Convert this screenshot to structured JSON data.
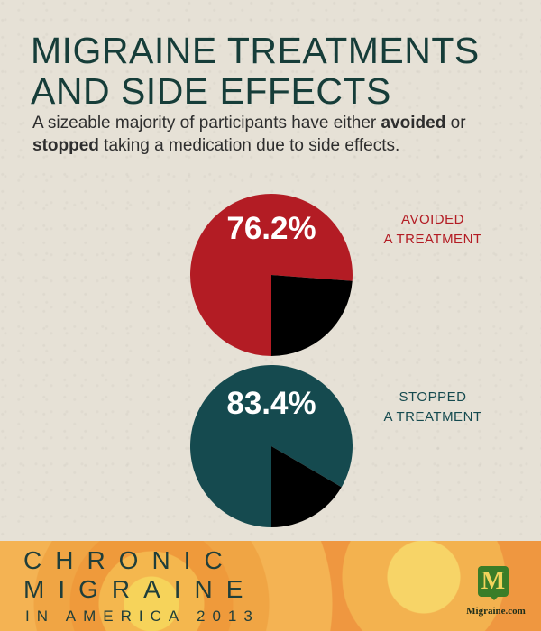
{
  "header": {
    "title_line1": "MIGRAINE TREATMENTS",
    "title_line2": "AND SIDE EFFECTS",
    "subtitle_part1": "A sizeable majority of participants have either ",
    "subtitle_bold1": "avoided",
    "subtitle_part2": " or ",
    "subtitle_bold2": "stopped",
    "subtitle_part3": " taking a medication due to side effects."
  },
  "chart_data": [
    {
      "type": "pie",
      "label_text": "76.2%",
      "legend_line1": "AVOIDED",
      "legend_line2": "A TREATMENT",
      "slices": [
        {
          "value": 76.2,
          "color": "#b31c24"
        },
        {
          "value": 23.8,
          "color": "#000000"
        }
      ],
      "label_color": "#b31c24"
    },
    {
      "type": "pie",
      "label_text": "83.4%",
      "legend_line1": "STOPPED",
      "legend_line2": "A TREATMENT",
      "slices": [
        {
          "value": 83.4,
          "color": "#154a4f"
        },
        {
          "value": 16.6,
          "color": "#000000"
        }
      ],
      "label_color": "#154a4f"
    }
  ],
  "footer": {
    "line1": "CHRONIC",
    "line2": "MIGRAINE",
    "line3": "IN AMERICA 2013",
    "logo_letter": "M",
    "brand": "Migraine.com"
  }
}
